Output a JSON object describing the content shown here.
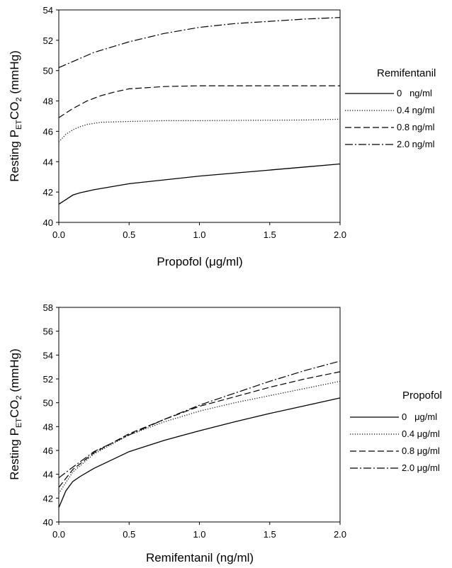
{
  "chart_data": [
    {
      "type": "line",
      "title": "",
      "xlabel": "Propofol (μg/ml)",
      "ylabel": {
        "main": "Resting P",
        "sub": "ET",
        "main2": "CO",
        "sub2": "2",
        "tail": " (mmHg)"
      },
      "xlim": [
        0,
        2
      ],
      "ylim": [
        40,
        54
      ],
      "xticks": [
        "0.0",
        "0.5",
        "1.0",
        "1.5",
        "2.0"
      ],
      "yticks": [
        "40",
        "42",
        "44",
        "46",
        "48",
        "50",
        "52",
        "54"
      ],
      "legend_title": "Remifentanil",
      "legend_position": "right",
      "series": [
        {
          "name": "0   ng/ml",
          "dash": "solid",
          "x": [
            0,
            0.05,
            0.1,
            0.15,
            0.25,
            0.5,
            0.75,
            1.0,
            1.25,
            1.5,
            1.75,
            2.0
          ],
          "y": [
            41.2,
            41.5,
            41.8,
            41.95,
            42.15,
            42.55,
            42.8,
            43.05,
            43.25,
            43.45,
            43.65,
            43.85
          ]
        },
        {
          "name": "0.4 ng/ml",
          "dash": "dotted",
          "x": [
            0,
            0.05,
            0.1,
            0.15,
            0.2,
            0.3,
            0.5,
            0.75,
            1.0,
            1.25,
            1.5,
            1.75,
            2.0
          ],
          "y": [
            45.3,
            45.8,
            46.1,
            46.3,
            46.45,
            46.6,
            46.65,
            46.7,
            46.7,
            46.72,
            46.73,
            46.75,
            46.8
          ]
        },
        {
          "name": "0.8 ng/ml",
          "dash": "dashed",
          "x": [
            0,
            0.1,
            0.2,
            0.3,
            0.4,
            0.5,
            0.75,
            1.0,
            1.25,
            1.5,
            1.75,
            2.0
          ],
          "y": [
            46.9,
            47.5,
            48.0,
            48.35,
            48.6,
            48.8,
            48.95,
            49.0,
            49.0,
            49.0,
            49.0,
            49.0
          ]
        },
        {
          "name": "2.0 ng/ml",
          "dash": "dashdot",
          "x": [
            0,
            0.1,
            0.25,
            0.5,
            0.75,
            1.0,
            1.25,
            1.5,
            1.75,
            2.0
          ],
          "y": [
            50.2,
            50.6,
            51.2,
            51.9,
            52.45,
            52.85,
            53.1,
            53.25,
            53.4,
            53.5
          ]
        }
      ]
    },
    {
      "type": "line",
      "title": "",
      "xlabel": "Remifentanil (ng/ml)",
      "ylabel": {
        "main": "Resting P",
        "sub": "ET",
        "main2": "CO",
        "sub2": "2",
        "tail": " (mmHg)"
      },
      "xlim": [
        0,
        2
      ],
      "ylim": [
        40,
        58
      ],
      "xticks": [
        "0.0",
        "0.5",
        "1.0",
        "1.5",
        "2.0"
      ],
      "yticks": [
        "40",
        "42",
        "44",
        "46",
        "48",
        "50",
        "52",
        "54",
        "56",
        "58"
      ],
      "legend_title": "Propofol",
      "legend_position": "right",
      "series": [
        {
          "name": "0   μg/ml",
          "dash": "solid",
          "x": [
            0,
            0.05,
            0.1,
            0.15,
            0.25,
            0.5,
            0.75,
            1.0,
            1.25,
            1.5,
            1.75,
            2.0
          ],
          "y": [
            41.2,
            42.6,
            43.4,
            43.8,
            44.5,
            45.9,
            46.85,
            47.65,
            48.4,
            49.1,
            49.75,
            50.4
          ]
        },
        {
          "name": "0.4 μg/ml",
          "dash": "dotted",
          "x": [
            0,
            0.1,
            0.25,
            0.5,
            0.75,
            1.0,
            1.25,
            1.5,
            1.75,
            2.0
          ],
          "y": [
            42.4,
            44.2,
            45.7,
            47.3,
            48.4,
            49.3,
            50.0,
            50.6,
            51.2,
            51.8
          ]
        },
        {
          "name": "0.8 μg/ml",
          "dash": "dashed",
          "x": [
            0,
            0.1,
            0.25,
            0.5,
            0.75,
            1.0,
            1.25,
            1.5,
            1.75,
            2.0
          ],
          "y": [
            42.9,
            44.4,
            45.8,
            47.4,
            48.6,
            49.7,
            50.5,
            51.3,
            52.0,
            52.6
          ]
        },
        {
          "name": "2.0 μg/ml",
          "dash": "dashdot",
          "x": [
            0,
            0.1,
            0.25,
            0.5,
            0.75,
            1.0,
            1.25,
            1.5,
            1.75,
            2.0
          ],
          "y": [
            43.7,
            44.6,
            45.9,
            47.3,
            48.6,
            49.8,
            50.8,
            51.8,
            52.7,
            53.5
          ]
        }
      ]
    }
  ]
}
